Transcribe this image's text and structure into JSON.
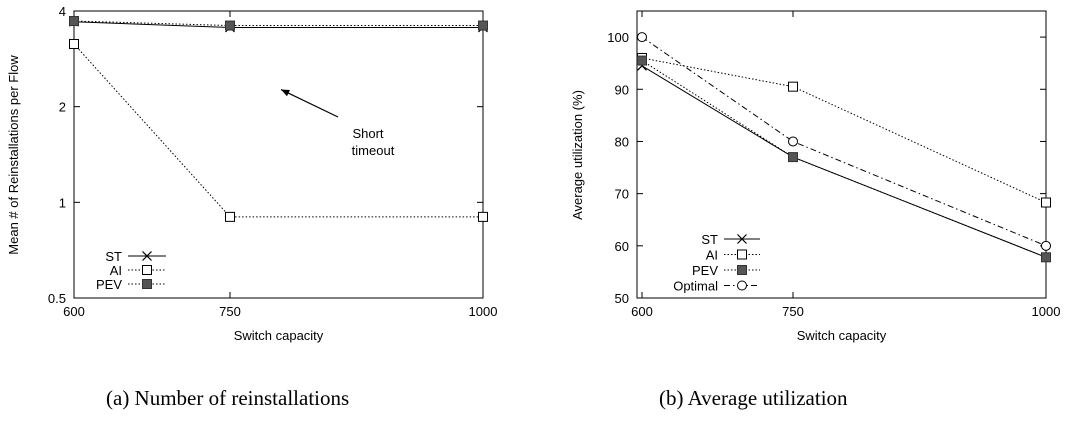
{
  "figure": {
    "panels": [
      {
        "caption": "(a)  Number of reinstallations"
      },
      {
        "caption": "(b)  Average utilization"
      }
    ]
  },
  "chart_data": [
    {
      "type": "line",
      "title": "",
      "xlabel": "Switch capacity",
      "ylabel": "Mean # of Reinstallations per Flow",
      "x": [
        600,
        750,
        1000
      ],
      "xticks": [
        "600",
        "750",
        "1000"
      ],
      "yscale": "log2",
      "ylim": [
        0.5,
        4
      ],
      "yticks": [
        0.5,
        1,
        2,
        4
      ],
      "yticklabels": [
        "0.5",
        "1",
        "2",
        "4"
      ],
      "grid": false,
      "legend_position": "bottom-left",
      "series": [
        {
          "name": "ST",
          "marker": "x",
          "line": "solid",
          "values": [
            3.7,
            3.55,
            3.55
          ]
        },
        {
          "name": "AI",
          "marker": "open-square",
          "line": "dotted",
          "values": [
            3.15,
            0.9,
            0.9
          ]
        },
        {
          "name": "PEV",
          "marker": "filled-square",
          "line": "dotted",
          "values": [
            3.72,
            3.6,
            3.6
          ]
        }
      ],
      "annotations": [
        {
          "text": [
            "Short",
            "timeout"
          ],
          "arrow_to": [
            750,
            3.3
          ]
        }
      ]
    },
    {
      "type": "line",
      "title": "",
      "xlabel": "Switch capacity",
      "ylabel": "Average utilization (%)",
      "x": [
        600,
        750,
        1000
      ],
      "xticks": [
        "600",
        "750",
        "1000"
      ],
      "ylim": [
        50,
        105
      ],
      "yticks": [
        50,
        60,
        70,
        80,
        90,
        100
      ],
      "yticklabels": [
        "50",
        "60",
        "70",
        "80",
        "90",
        "100"
      ],
      "grid": false,
      "legend_position": "bottom-left",
      "series": [
        {
          "name": "ST",
          "marker": "x",
          "line": "solid",
          "values": [
            94.5,
            77,
            57.8
          ]
        },
        {
          "name": "AI",
          "marker": "open-square",
          "line": "dotted",
          "values": [
            96,
            90.5,
            68.3
          ]
        },
        {
          "name": "PEV",
          "marker": "filled-square",
          "line": "dotted",
          "values": [
            95.5,
            77,
            57.8
          ]
        },
        {
          "name": "Optimal",
          "marker": "open-circle",
          "line": "dash-dot",
          "values": [
            100,
            80,
            60
          ]
        }
      ]
    }
  ]
}
